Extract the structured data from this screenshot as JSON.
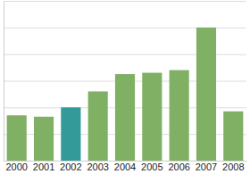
{
  "chart_data": {
    "type": "bar",
    "categories": [
      "2000",
      "2001",
      "2002",
      "2003",
      "2004",
      "2005",
      "2006",
      "2007",
      "2008"
    ],
    "values": [
      1.7,
      1.65,
      2.0,
      2.6,
      3.25,
      3.3,
      3.4,
      5.0,
      1.85
    ],
    "colors": [
      "#80b063",
      "#80b063",
      "#339999",
      "#80b063",
      "#80b063",
      "#80b063",
      "#80b063",
      "#80b063",
      "#80b063"
    ],
    "ylim": [
      0,
      6
    ],
    "yticks": [
      0,
      1,
      2,
      3,
      4,
      5,
      6
    ],
    "grid": true,
    "tick_labels": "x"
  }
}
